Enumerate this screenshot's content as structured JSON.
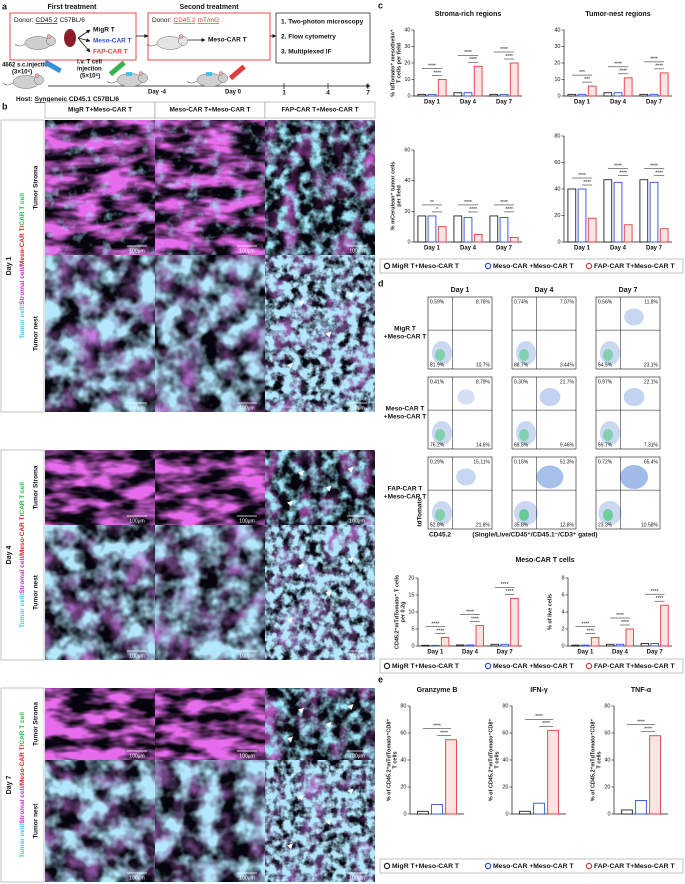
{
  "panel_a": {
    "label": "a",
    "first_treatment": "First treatment",
    "donor1_prefix": "Donor:",
    "donor1_strain": "CD45.2",
    "donor1_suffix": "C57BL/6",
    "cells": [
      {
        "name": "MigR T",
        "color": "#111111"
      },
      {
        "name": "Meso-CAR T",
        "color": "#2f4fd6"
      },
      {
        "name": "FAP-CAR T",
        "color": "#e23b3b"
      }
    ],
    "second_treatment": "Second treatment",
    "donor2_prefix": "Donor:",
    "donor2_strain": "CD45.2",
    "donor2_suffix": "mT/mG",
    "second_cell": "Meso-CAR T",
    "readouts": [
      "1. Two-photon microscopy",
      "2. Flow cytometry",
      "3. Multiplexed IF"
    ],
    "tumor_injection": "4662 s.c.injection",
    "tumor_dose": "(3×10⁶)",
    "tcell_injection": "i.v. T cell",
    "tcell_injection_2": "injection",
    "tcell_dose": "(5×10⁶)",
    "day_first": "Day -4",
    "day_second": "Day 0",
    "timepoints": [
      "1",
      "4",
      "7"
    ],
    "host_prefix": "Host:",
    "host_strain": "Syngeneic CD45.1",
    "host_suffix": "C57BL/6"
  },
  "panel_b": {
    "label": "b",
    "columns": [
      "MigR T+Meso-CAR T",
      "Meso-CAR T+Meso-CAR T",
      "FAP-CAR T+Meso-CAR T"
    ],
    "days": [
      "Day 1",
      "Day 4",
      "Day 7"
    ],
    "regions": [
      "Tumor Stroma",
      "Tumor nest"
    ],
    "channels": [
      {
        "name": "Tumor cell/",
        "color": "#3cc8e8"
      },
      {
        "name": "Stromal cell/",
        "color": "#c030c8"
      },
      {
        "name": "Meso-CAR T/",
        "color": "#e02020"
      },
      {
        "name": "CAR T cell",
        "color": "#20c040"
      }
    ],
    "scale_bar": "100μm"
  },
  "panel_c": {
    "label": "c",
    "legend": [
      {
        "name": "MigR T+Meso-CAR T",
        "color": "#222222"
      },
      {
        "name": "Meso-CAR +Meso-CAR T",
        "color": "#2f4fd6"
      },
      {
        "name": "FAP-CAR T+Meso-CAR T",
        "color": "#e23b3b"
      }
    ],
    "charts": [
      {
        "type": "bar",
        "title": "Stroma-rich regions",
        "ylabel": [
          "% tdTomato⁺ mesothelin⁺",
          "T cells per field"
        ],
        "categories": [
          "Day 1",
          "Day 4",
          "Day 7"
        ],
        "series": [
          {
            "values": [
              1,
              2,
              1
            ]
          },
          {
            "values": [
              1,
              2,
              1
            ]
          },
          {
            "values": [
              10,
              18,
              20
            ]
          }
        ],
        "ylim": [
          0,
          40
        ],
        "yticks": [
          0,
          10,
          20,
          30,
          40
        ],
        "significance": [
          [
            "****",
            "****"
          ],
          [
            "****",
            "****"
          ],
          [
            "****",
            "****"
          ]
        ]
      },
      {
        "type": "bar",
        "title": "Tumor-nest regions",
        "categories": [
          "Day 1",
          "Day 4",
          "Day 7"
        ],
        "series": [
          {
            "values": [
              1,
              2,
              1
            ]
          },
          {
            "values": [
              1,
              2,
              1
            ]
          },
          {
            "values": [
              6,
              11,
              14
            ]
          }
        ],
        "ylim": [
          0,
          40
        ],
        "yticks": [
          0,
          10,
          20,
          30,
          40
        ],
        "significance": [
          [
            "***",
            "***"
          ],
          [
            "****",
            "****"
          ],
          [
            "****",
            "****"
          ]
        ]
      },
      {
        "type": "bar",
        "ylabel": [
          "% mCerulean⁺ tumor cells",
          "per field"
        ],
        "categories": [
          "Day 1",
          "Day 4",
          "Day 7"
        ],
        "series": [
          {
            "values": [
              17,
              17,
              17
            ]
          },
          {
            "values": [
              17,
              16,
              16
            ]
          },
          {
            "values": [
              10,
              5,
              3
            ]
          }
        ],
        "ylim": [
          0,
          60
        ],
        "yticks": [
          0,
          20,
          40,
          60
        ],
        "significance": [
          [
            "**",
            "*"
          ],
          [
            "****",
            "****"
          ],
          [
            "****",
            "****"
          ]
        ]
      },
      {
        "type": "bar",
        "categories": [
          "Day 1",
          "Day 4",
          "Day 7"
        ],
        "series": [
          {
            "values": [
              40,
              47,
              47
            ]
          },
          {
            "values": [
              40,
              45,
              45
            ]
          },
          {
            "values": [
              18,
              13,
              10
            ]
          }
        ],
        "ylim": [
          0,
          80
        ],
        "yticks": [
          0,
          20,
          40,
          60,
          80
        ],
        "significance": [
          [
            "****",
            "****"
          ],
          [
            "****",
            "****"
          ],
          [
            "****",
            "****"
          ]
        ]
      }
    ]
  },
  "panel_d": {
    "label": "d",
    "days": [
      "Day 1",
      "Day 4",
      "Day 7"
    ],
    "rows": [
      {
        "label": [
          "MigR T",
          "+Meso-CAR T"
        ],
        "quadrants": [
          [
            "0.59%",
            "8.76%",
            "81.9%",
            "10.7%"
          ],
          [
            "0.74%",
            "7.07%",
            "88.7%",
            "3.44%"
          ],
          [
            "0.56%",
            "11.8%",
            "64.5%",
            "23.1%"
          ]
        ]
      },
      {
        "label": [
          "Meso-CAR T",
          "+Meso-CAR T"
        ],
        "quadrants": [
          [
            "0.41%",
            "8.79%",
            "76.2%",
            "14.6%"
          ],
          [
            "0.30%",
            "21.7%",
            "68.5%",
            "9.46%"
          ],
          [
            "0.97%",
            "22.1%",
            "69.7%",
            "7.31%"
          ]
        ]
      },
      {
        "label": [
          "FAP-CAR T",
          "+Meso-CAR T"
        ],
        "quadrants": [
          [
            "0.29%",
            "15.11%",
            "62.8%",
            "21.8%"
          ],
          [
            "0.15%",
            "51.3%",
            "35.8%",
            "12.8%"
          ],
          [
            "0.72%",
            "65.4%",
            "23.3%",
            "10.58%"
          ]
        ]
      }
    ],
    "y_axis": "tdTomato",
    "x_axis": "CD45.2",
    "gating": "(Single/Live/CD45⁺/CD45.1⁻/CD3⁺ gated)",
    "bar_title": "Meso-CAR T cells",
    "legend": [
      {
        "name": "MigR T+Meso-CAR T",
        "color": "#222222"
      },
      {
        "name": "Meso-CAR +Meso-CAR T",
        "color": "#2f4fd6"
      },
      {
        "name": "FAP-CAR T+Meso-CAR T",
        "color": "#e23b3b"
      }
    ],
    "charts": [
      {
        "type": "bar",
        "ylabel": [
          "CD45.2⁺mTdTomato⁺ T cells",
          "per 0.2g"
        ],
        "categories": [
          "Day 1",
          "Day 4",
          "Day 7"
        ],
        "series": [
          {
            "values": [
              0.2,
              0.3,
              0.5
            ]
          },
          {
            "values": [
              0.2,
              0.3,
              0.5
            ]
          },
          {
            "values": [
              2.5,
              6,
              14
            ]
          }
        ],
        "ylim": [
          0,
          20
        ],
        "yticks": [
          0,
          5,
          10,
          15,
          20
        ],
        "significance": [
          [
            "****",
            "****"
          ],
          [
            "****",
            "****"
          ],
          [
            "****",
            "****"
          ]
        ]
      },
      {
        "type": "bar",
        "ylabel": [
          "% of live cells"
        ],
        "categories": [
          "Day 1",
          "Day 4",
          "Day 7"
        ],
        "series": [
          {
            "values": [
              0.1,
              0.2,
              0.3
            ]
          },
          {
            "values": [
              0.1,
              0.2,
              0.3
            ]
          },
          {
            "values": [
              1,
              2,
              4.8
            ]
          }
        ],
        "ylim": [
          0,
          8
        ],
        "yticks": [
          0,
          2,
          4,
          6,
          8
        ],
        "significance": [
          [
            "****",
            "****"
          ],
          [
            "****",
            "****"
          ],
          [
            "****",
            "****"
          ]
        ]
      }
    ]
  },
  "panel_e": {
    "label": "e",
    "legend": [
      {
        "name": "MigR T+Meso-CAR T",
        "color": "#222222"
      },
      {
        "name": "Meso-CAR +Meso-CAR T",
        "color": "#2f4fd6"
      },
      {
        "name": "FAP-CAR T+Meso-CAR T",
        "color": "#e23b3b"
      }
    ],
    "charts": [
      {
        "type": "bar",
        "title": "Granzyme B",
        "ylabel": [
          "% of CD45.2⁺mTdTomato⁺CD8⁺",
          "T cells"
        ],
        "series": [
          {
            "values": [
              2
            ]
          },
          {
            "values": [
              7
            ]
          },
          {
            "values": [
              55
            ]
          }
        ],
        "ylim": [
          0,
          80
        ],
        "yticks": [
          0,
          20,
          40,
          60,
          80
        ],
        "significance": [
          [
            "****",
            "****"
          ]
        ]
      },
      {
        "type": "bar",
        "title": "IFN-γ",
        "ylabel": [
          "% of CD45.2⁺mTdTomato⁺CD8⁺",
          "T cells"
        ],
        "series": [
          {
            "values": [
              2
            ]
          },
          {
            "values": [
              8
            ]
          },
          {
            "values": [
              62
            ]
          }
        ],
        "ylim": [
          0,
          80
        ],
        "yticks": [
          0,
          20,
          40,
          60,
          80
        ],
        "significance": [
          [
            "****",
            "****"
          ]
        ]
      },
      {
        "type": "bar",
        "title": "TNF-α",
        "ylabel": [
          "% of CD45.2⁺mTdTomato⁺CD8⁺",
          "T cells"
        ],
        "series": [
          {
            "values": [
              3
            ]
          },
          {
            "values": [
              10
            ]
          },
          {
            "values": [
              58
            ]
          }
        ],
        "ylim": [
          0,
          80
        ],
        "yticks": [
          0,
          20,
          40,
          60,
          80
        ],
        "significance": [
          [
            "****",
            "****"
          ]
        ]
      }
    ]
  }
}
